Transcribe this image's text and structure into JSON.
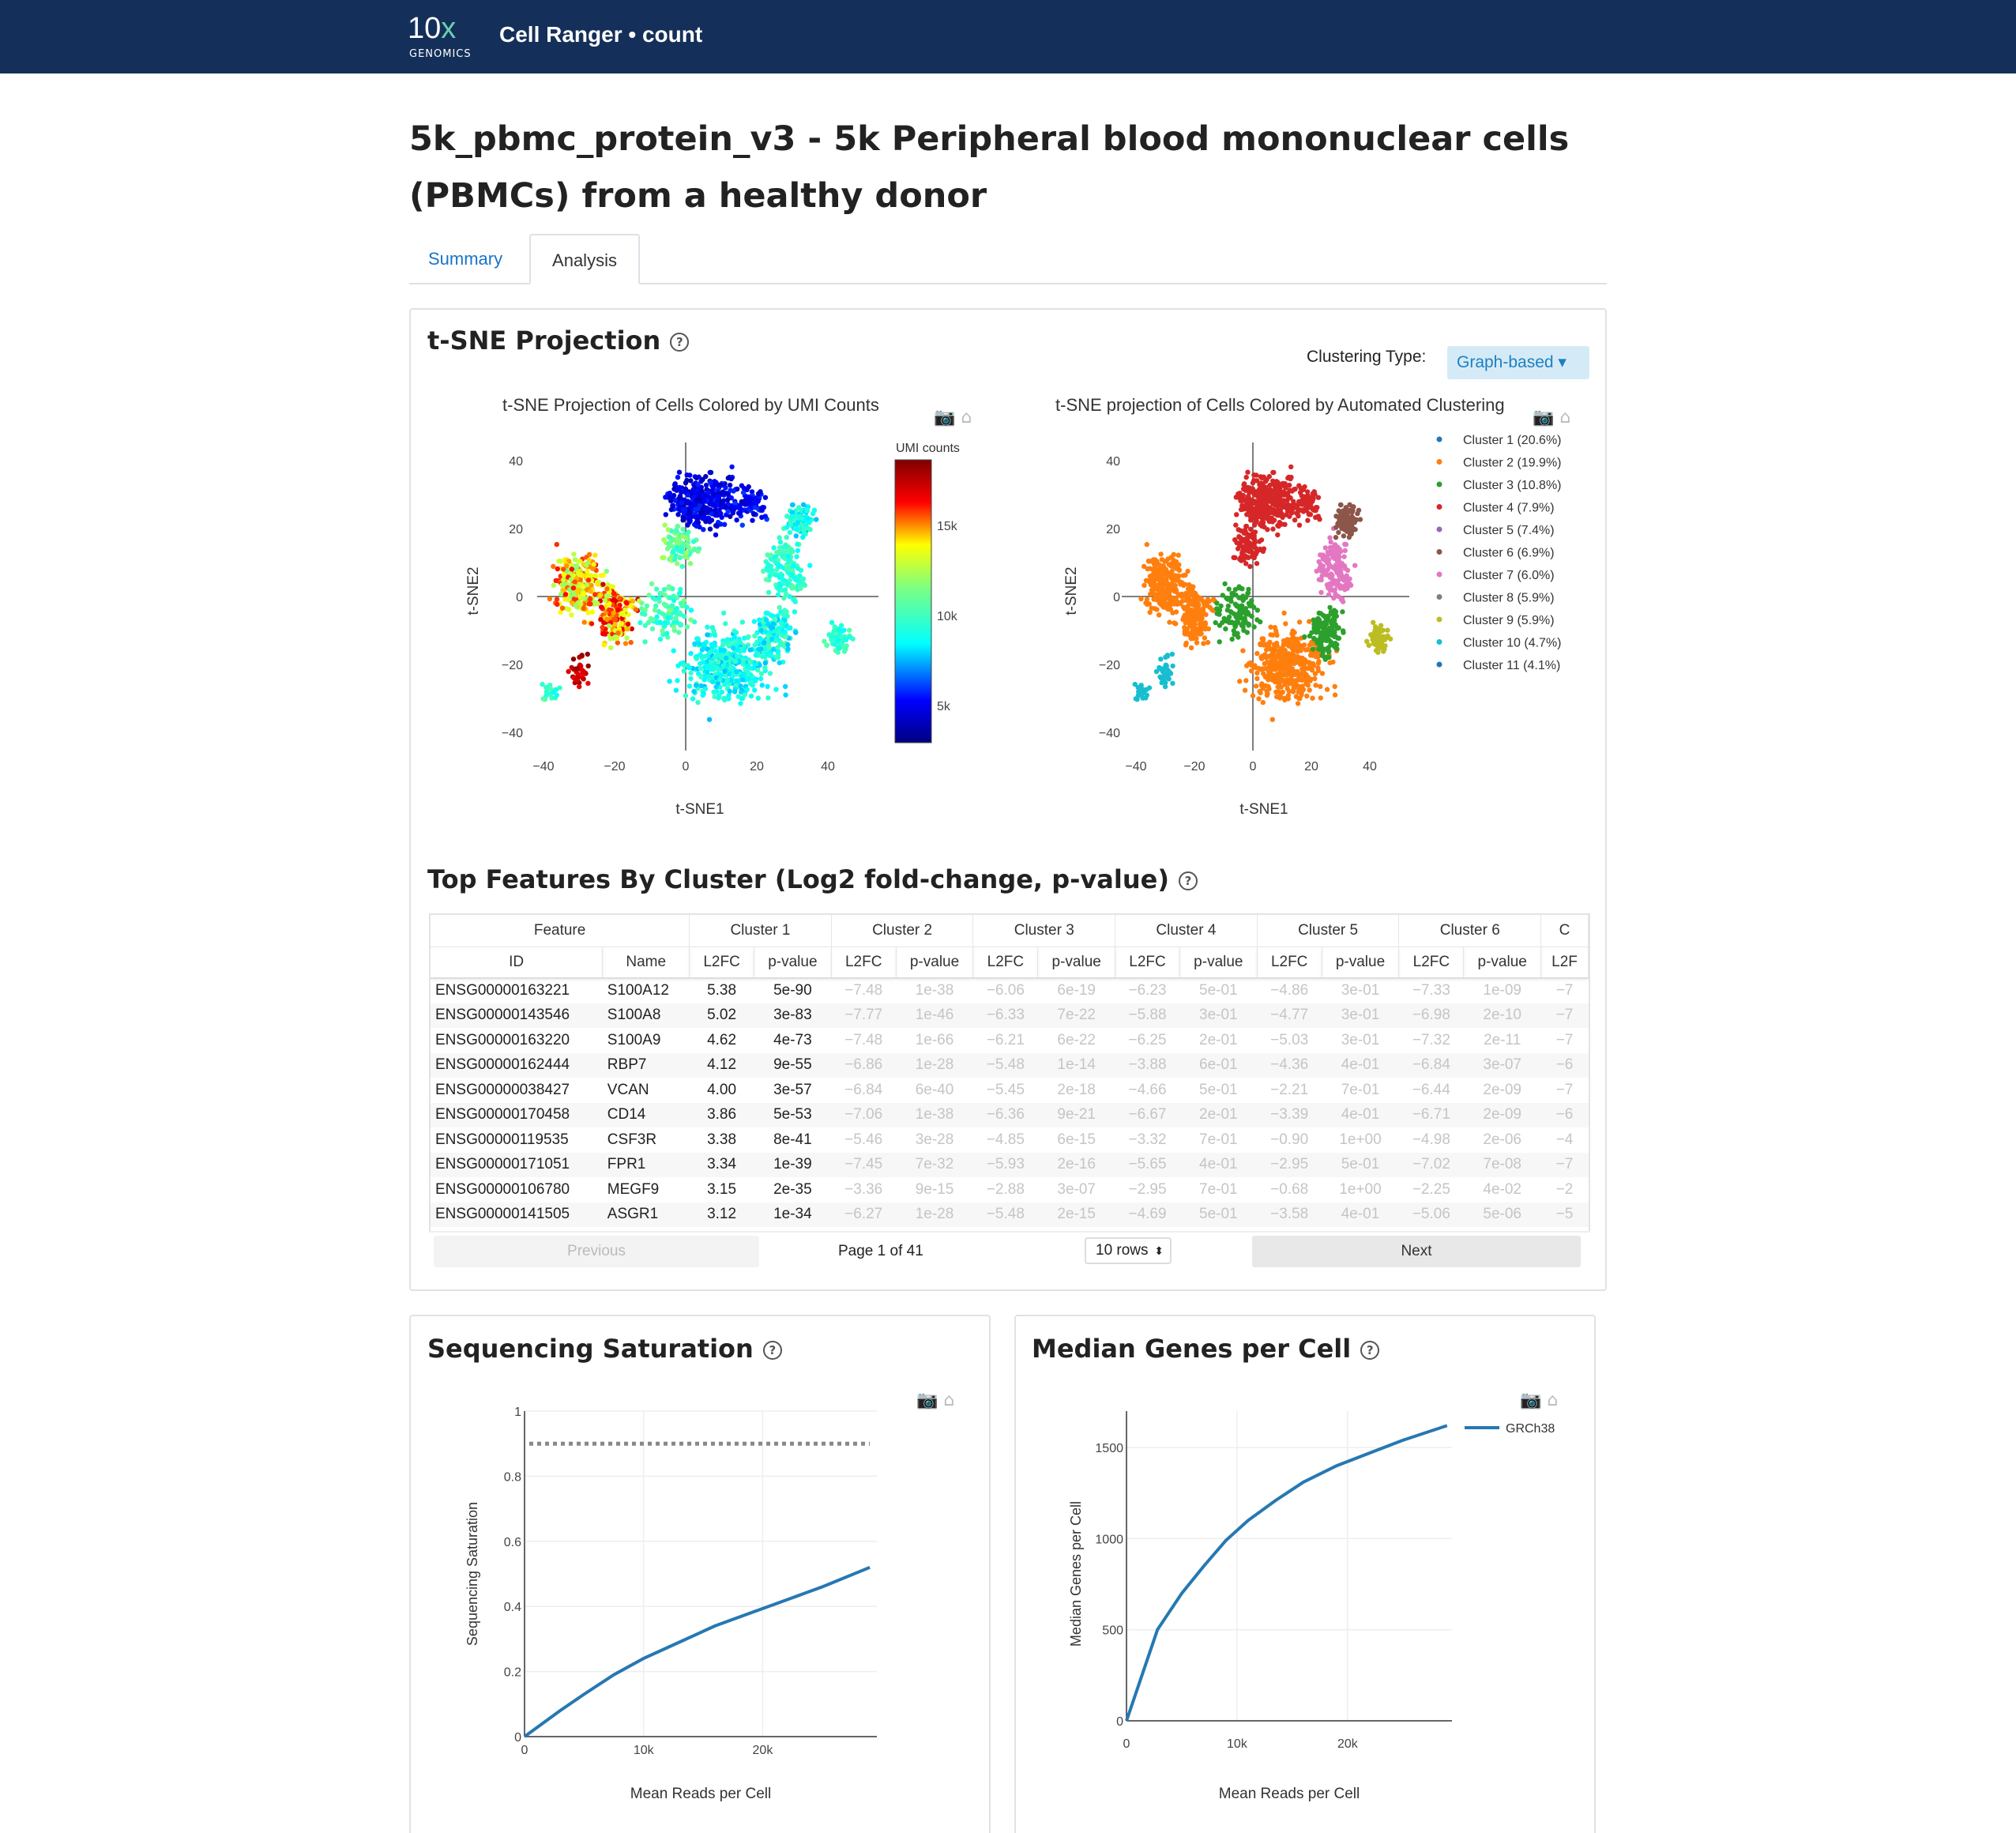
{
  "header": {
    "logo_text": "10",
    "logo_x": "x",
    "logo_sub": "GENOMICS",
    "app_title": "Cell Ranger • count"
  },
  "page_title": "5k_pbmc_protein_v3 - 5k Peripheral blood mononuclear cells (PBMCs) from a healthy donor",
  "tabs": [
    {
      "label": "Summary"
    },
    {
      "label": "Analysis"
    }
  ],
  "tsne": {
    "heading": "t-SNE Projection",
    "clustering_label": "Clustering Type:",
    "clustering_value": "Graph-based",
    "umi_plot_title": "t-SNE Projection of Cells Colored by UMI Counts",
    "cluster_plot_title": "t-SNE projection of Cells Colored by Automated Clustering",
    "colorbar_title": "UMI counts",
    "colorbar_ticks": [
      "15k",
      "10k",
      "5k"
    ],
    "xlabel": "t-SNE1",
    "ylabel": "t-SNE2",
    "xticks": [
      "−40",
      "−20",
      "0",
      "20",
      "40"
    ],
    "yticks": [
      "40",
      "20",
      "0",
      "−20",
      "−40"
    ],
    "clusters": [
      {
        "label": "Cluster 1 (20.6%)",
        "color": "#1f77b4"
      },
      {
        "label": "Cluster 2 (19.9%)",
        "color": "#ff7f0e"
      },
      {
        "label": "Cluster 3 (10.8%)",
        "color": "#2ca02c"
      },
      {
        "label": "Cluster 4 (7.9%)",
        "color": "#d62728"
      },
      {
        "label": "Cluster 5 (7.4%)",
        "color": "#9467bd"
      },
      {
        "label": "Cluster 6 (6.9%)",
        "color": "#8c564b"
      },
      {
        "label": "Cluster 7 (6.0%)",
        "color": "#e377c2"
      },
      {
        "label": "Cluster 8 (5.9%)",
        "color": "#7f7f7f"
      },
      {
        "label": "Cluster 9 (5.9%)",
        "color": "#bcbd22"
      },
      {
        "label": "Cluster 10 (4.7%)",
        "color": "#17becf"
      },
      {
        "label": "Cluster 11 (4.1%)",
        "color": "#1f77b4"
      }
    ]
  },
  "features": {
    "heading": "Top Features By Cluster (Log2 fold-change, p-value)",
    "group_headers": [
      "Feature",
      "Cluster 1",
      "Cluster 2",
      "Cluster 3",
      "Cluster 4",
      "Cluster 5",
      "Cluster 6",
      "C"
    ],
    "sub_headers": [
      "ID",
      "Name",
      "L2FC",
      "p-value",
      "L2FC",
      "p-value",
      "L2FC",
      "p-value",
      "L2FC",
      "p-value",
      "L2FC",
      "p-value",
      "L2FC",
      "p-value",
      "L2F"
    ],
    "rows": [
      [
        "ENSG00000163221",
        "S100A12",
        "5.38",
        "5e-90",
        "−7.48",
        "1e-38",
        "−6.06",
        "6e-19",
        "−6.23",
        "5e-01",
        "−4.86",
        "3e-01",
        "−7.33",
        "1e-09",
        "−7"
      ],
      [
        "ENSG00000143546",
        "S100A8",
        "5.02",
        "3e-83",
        "−7.77",
        "1e-46",
        "−6.33",
        "7e-22",
        "−5.88",
        "3e-01",
        "−4.77",
        "3e-01",
        "−6.98",
        "2e-10",
        "−7"
      ],
      [
        "ENSG00000163220",
        "S100A9",
        "4.62",
        "4e-73",
        "−7.48",
        "1e-66",
        "−6.21",
        "6e-22",
        "−6.25",
        "2e-01",
        "−5.03",
        "3e-01",
        "−7.32",
        "2e-11",
        "−7"
      ],
      [
        "ENSG00000162444",
        "RBP7",
        "4.12",
        "9e-55",
        "−6.86",
        "1e-28",
        "−5.48",
        "1e-14",
        "−3.88",
        "6e-01",
        "−4.36",
        "4e-01",
        "−6.84",
        "3e-07",
        "−6"
      ],
      [
        "ENSG00000038427",
        "VCAN",
        "4.00",
        "3e-57",
        "−6.84",
        "6e-40",
        "−5.45",
        "2e-18",
        "−4.66",
        "5e-01",
        "−2.21",
        "7e-01",
        "−6.44",
        "2e-09",
        "−7"
      ],
      [
        "ENSG00000170458",
        "CD14",
        "3.86",
        "5e-53",
        "−7.06",
        "1e-38",
        "−6.36",
        "9e-21",
        "−6.67",
        "2e-01",
        "−3.39",
        "4e-01",
        "−6.71",
        "2e-09",
        "−6"
      ],
      [
        "ENSG00000119535",
        "CSF3R",
        "3.38",
        "8e-41",
        "−5.46",
        "3e-28",
        "−4.85",
        "6e-15",
        "−3.32",
        "7e-01",
        "−0.90",
        "1e+00",
        "−4.98",
        "2e-06",
        "−4"
      ],
      [
        "ENSG00000171051",
        "FPR1",
        "3.34",
        "1e-39",
        "−7.45",
        "7e-32",
        "−5.93",
        "2e-16",
        "−5.65",
        "4e-01",
        "−2.95",
        "5e-01",
        "−7.02",
        "7e-08",
        "−7"
      ],
      [
        "ENSG00000106780",
        "MEGF9",
        "3.15",
        "2e-35",
        "−3.36",
        "9e-15",
        "−2.88",
        "3e-07",
        "−2.95",
        "7e-01",
        "−0.68",
        "1e+00",
        "−2.25",
        "4e-02",
        "−2"
      ],
      [
        "ENSG00000141505",
        "ASGR1",
        "3.12",
        "1e-34",
        "−6.27",
        "1e-28",
        "−5.48",
        "2e-15",
        "−4.69",
        "5e-01",
        "−3.58",
        "4e-01",
        "−5.06",
        "5e-06",
        "−5"
      ]
    ],
    "pager": {
      "previous": "Previous",
      "page_info": "Page 1 of 41",
      "rows": "10 rows",
      "next": "Next"
    }
  },
  "saturation": {
    "heading": "Sequencing Saturation",
    "xlabel": "Mean Reads per Cell",
    "ylabel": "Sequencing Saturation",
    "xticks": [
      "0",
      "10k",
      "20k"
    ],
    "yticks": [
      "0",
      "0.2",
      "0.4",
      "0.6",
      "0.8",
      "1"
    ]
  },
  "median_genes": {
    "heading": "Median Genes per Cell",
    "xlabel": "Mean Reads per Cell",
    "ylabel": "Median Genes per Cell",
    "xticks": [
      "0",
      "10k",
      "20k"
    ],
    "yticks": [
      "0",
      "500",
      "1000",
      "1500"
    ],
    "legend": "GRCh38"
  },
  "chart_data": [
    {
      "type": "line",
      "title": "Sequencing Saturation",
      "xlabel": "Mean Reads per Cell",
      "ylabel": "Sequencing Saturation",
      "xlim": [
        0,
        29000
      ],
      "ylim": [
        0,
        1
      ],
      "series": [
        {
          "x": [
            0,
            1500,
            3000,
            5000,
            7500,
            10000,
            13000,
            16000,
            19000,
            22000,
            25000,
            29000
          ],
          "values": [
            0,
            0.04,
            0.08,
            0.13,
            0.19,
            0.24,
            0.29,
            0.34,
            0.38,
            0.42,
            0.46,
            0.52
          ]
        },
        {
          "x": [
            0,
            29000
          ],
          "values": [
            0.9,
            0.9
          ]
        }
      ]
    },
    {
      "type": "line",
      "title": "Median Genes per Cell",
      "xlabel": "Mean Reads per Cell",
      "ylabel": "Median Genes per Cell",
      "xlim": [
        0,
        29000
      ],
      "ylim": [
        0,
        1700
      ],
      "series": [
        {
          "name": "GRCh38",
          "x": [
            0,
            2800,
            5000,
            7000,
            9000,
            11000,
            13500,
            16000,
            19000,
            22000,
            25000,
            29000
          ],
          "values": [
            0,
            500,
            700,
            850,
            990,
            1100,
            1210,
            1310,
            1400,
            1470,
            1540,
            1620
          ]
        }
      ]
    }
  ]
}
